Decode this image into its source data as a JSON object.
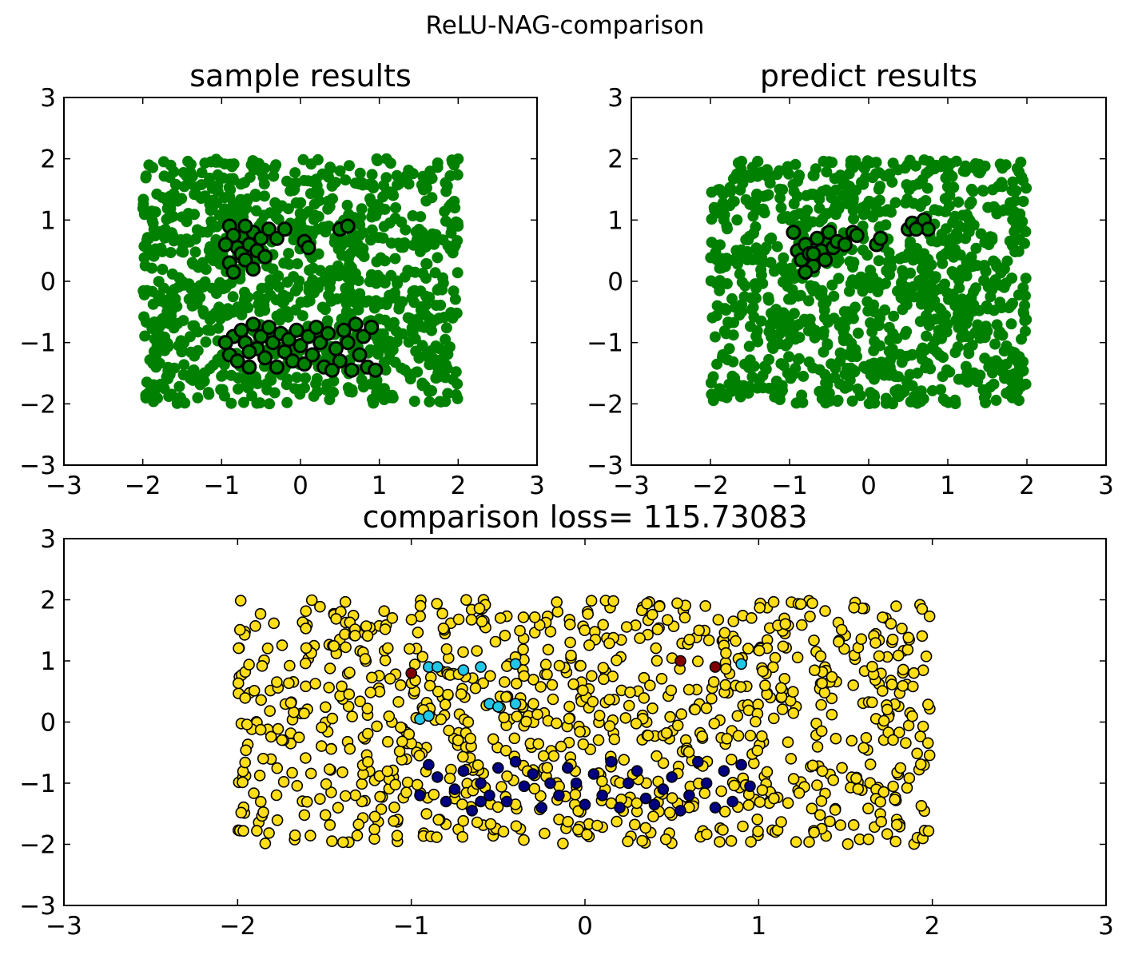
{
  "figure": {
    "suptitle": "ReLU-NAG-comparison"
  },
  "chart_data": [
    {
      "id": "sample",
      "type": "scatter",
      "title": "sample results",
      "xlim": [
        -3,
        3
      ],
      "ylim": [
        -3,
        3
      ],
      "xticks": [
        -3,
        -2,
        -1,
        0,
        1,
        2,
        3
      ],
      "yticks": [
        -3,
        -2,
        -1,
        0,
        1,
        2,
        3
      ],
      "grid": false,
      "background_points": {
        "distribution": "uniform",
        "x_range": [
          -2,
          2
        ],
        "y_range": [
          -2,
          2
        ],
        "approx_count": 1000,
        "color": "#008000"
      },
      "series": [
        {
          "color": "#008000",
          "edge": "#000000",
          "points": [
            [
              -0.9,
              0.9
            ],
            [
              -0.85,
              0.75
            ],
            [
              -0.8,
              0.55
            ],
            [
              -0.75,
              0.45
            ],
            [
              -0.7,
              0.35
            ],
            [
              -0.65,
              0.6
            ],
            [
              -0.6,
              0.8
            ],
            [
              -0.55,
              0.5
            ],
            [
              -0.5,
              0.7
            ],
            [
              -0.45,
              0.4
            ],
            [
              -0.9,
              0.3
            ],
            [
              -0.85,
              0.15
            ],
            [
              -0.7,
              0.9
            ],
            [
              -0.4,
              0.85
            ],
            [
              -0.3,
              0.7
            ],
            [
              -0.2,
              0.85
            ],
            [
              0.05,
              0.65
            ],
            [
              0.1,
              0.55
            ],
            [
              0.5,
              0.85
            ],
            [
              0.6,
              0.9
            ],
            [
              -0.95,
              0.6
            ],
            [
              -0.6,
              0.2
            ],
            [
              -0.9,
              -1.2
            ],
            [
              -0.85,
              -0.9
            ],
            [
              -0.8,
              -1.3
            ],
            [
              -0.75,
              -0.8
            ],
            [
              -0.7,
              -1.0
            ],
            [
              -0.65,
              -1.4
            ],
            [
              -0.6,
              -0.7
            ],
            [
              -0.55,
              -1.1
            ],
            [
              -0.5,
              -0.9
            ],
            [
              -0.45,
              -1.25
            ],
            [
              -0.4,
              -0.75
            ],
            [
              -0.35,
              -1.0
            ],
            [
              -0.3,
              -1.4
            ],
            [
              -0.25,
              -0.85
            ],
            [
              -0.2,
              -1.15
            ],
            [
              -0.15,
              -0.95
            ],
            [
              -0.1,
              -1.3
            ],
            [
              -0.05,
              -0.8
            ],
            [
              0.0,
              -1.05
            ],
            [
              0.05,
              -1.35
            ],
            [
              0.1,
              -0.9
            ],
            [
              0.15,
              -1.2
            ],
            [
              0.2,
              -0.75
            ],
            [
              0.25,
              -1.0
            ],
            [
              0.3,
              -1.4
            ],
            [
              0.35,
              -0.85
            ],
            [
              0.45,
              -1.1
            ],
            [
              0.5,
              -1.3
            ],
            [
              0.55,
              -0.8
            ],
            [
              0.6,
              -1.0
            ],
            [
              0.65,
              -1.45
            ],
            [
              0.7,
              -0.7
            ],
            [
              0.75,
              -1.2
            ],
            [
              0.8,
              -0.9
            ],
            [
              0.85,
              -1.4
            ],
            [
              0.9,
              -0.75
            ],
            [
              -0.95,
              -1.0
            ],
            [
              -0.65,
              -1.15
            ],
            [
              0.4,
              -1.45
            ],
            [
              0.95,
              -1.45
            ]
          ]
        }
      ]
    },
    {
      "id": "predict",
      "type": "scatter",
      "title": "predict results",
      "xlim": [
        -3,
        3
      ],
      "ylim": [
        -3,
        3
      ],
      "xticks": [
        -3,
        -2,
        -1,
        0,
        1,
        2,
        3
      ],
      "yticks": [
        -3,
        -2,
        -1,
        0,
        1,
        2,
        3
      ],
      "grid": false,
      "background_points": {
        "distribution": "uniform",
        "x_range": [
          -2,
          2
        ],
        "y_range": [
          -2,
          2
        ],
        "approx_count": 1000,
        "color": "#008000"
      },
      "series": [
        {
          "color": "#008000",
          "edge": "#000000",
          "points": [
            [
              -0.95,
              0.8
            ],
            [
              -0.9,
              0.5
            ],
            [
              -0.85,
              0.35
            ],
            [
              -0.8,
              0.6
            ],
            [
              -0.75,
              0.45
            ],
            [
              -0.7,
              0.25
            ],
            [
              -0.65,
              0.7
            ],
            [
              -0.6,
              0.5
            ],
            [
              -0.55,
              0.35
            ],
            [
              -0.5,
              0.8
            ],
            [
              -0.45,
              0.55
            ],
            [
              -0.4,
              0.65
            ],
            [
              -0.3,
              0.6
            ],
            [
              -0.2,
              0.8
            ],
            [
              -0.15,
              0.75
            ],
            [
              0.1,
              0.6
            ],
            [
              0.15,
              0.7
            ],
            [
              0.5,
              0.85
            ],
            [
              0.55,
              0.95
            ],
            [
              0.65,
              0.9
            ],
            [
              0.7,
              1.0
            ],
            [
              0.75,
              0.85
            ],
            [
              -0.8,
              0.15
            ],
            [
              -0.7,
              0.45
            ],
            [
              0.6,
              0.85
            ]
          ]
        }
      ]
    },
    {
      "id": "comparison",
      "type": "scatter",
      "title": "comparison loss= 115.73083",
      "xlim": [
        -3,
        3
      ],
      "ylim": [
        -3,
        3
      ],
      "xticks": [
        -3,
        -2,
        -1,
        0,
        1,
        2,
        3
      ],
      "yticks": [
        -3,
        -2,
        -1,
        0,
        1,
        2,
        3
      ],
      "grid": false,
      "background_points": {
        "distribution": "uniform",
        "x_range": [
          -2,
          2
        ],
        "y_range": [
          -2,
          2
        ],
        "approx_count": 1000,
        "color": "#ffde17"
      },
      "series": [
        {
          "color": "#000080",
          "points": [
            [
              -0.9,
              -0.7
            ],
            [
              -0.85,
              -0.9
            ],
            [
              -0.8,
              -1.3
            ],
            [
              -0.75,
              -1.1
            ],
            [
              -0.7,
              -0.8
            ],
            [
              -0.65,
              -1.45
            ],
            [
              -0.6,
              -1.0
            ],
            [
              -0.55,
              -1.2
            ],
            [
              -0.5,
              -0.75
            ],
            [
              -0.45,
              -1.3
            ],
            [
              -0.4,
              -0.65
            ],
            [
              -0.35,
              -1.05
            ],
            [
              -0.3,
              -0.85
            ],
            [
              -0.25,
              -1.4
            ],
            [
              -0.15,
              -1.2
            ],
            [
              -0.1,
              -0.75
            ],
            [
              -0.05,
              -1.0
            ],
            [
              0.0,
              -1.35
            ],
            [
              0.05,
              -0.85
            ],
            [
              0.1,
              -1.2
            ],
            [
              0.15,
              -0.65
            ],
            [
              0.2,
              -1.4
            ],
            [
              0.25,
              -1.0
            ],
            [
              0.3,
              -0.8
            ],
            [
              0.35,
              -1.25
            ],
            [
              0.45,
              -1.1
            ],
            [
              0.5,
              -0.9
            ],
            [
              0.55,
              -1.45
            ],
            [
              0.6,
              -1.2
            ],
            [
              0.65,
              -0.65
            ],
            [
              0.7,
              -1.0
            ],
            [
              0.75,
              -1.4
            ],
            [
              0.8,
              -0.8
            ],
            [
              0.85,
              -1.3
            ],
            [
              0.9,
              -0.7
            ],
            [
              -0.95,
              -1.2
            ],
            [
              -0.6,
              -1.3
            ],
            [
              0.4,
              -1.35
            ],
            [
              0.95,
              -1.05
            ],
            [
              -0.2,
              -1.0
            ]
          ]
        },
        {
          "color": "#22c6e8",
          "points": [
            [
              -0.9,
              0.9
            ],
            [
              -0.85,
              0.9
            ],
            [
              -0.7,
              0.85
            ],
            [
              -0.6,
              0.9
            ],
            [
              -0.4,
              0.95
            ],
            [
              -0.55,
              0.3
            ],
            [
              -0.4,
              0.3
            ],
            [
              -0.95,
              0.05
            ],
            [
              -0.9,
              0.1
            ],
            [
              -0.5,
              0.25
            ],
            [
              0.9,
              0.95
            ]
          ]
        },
        {
          "color": "#800000",
          "points": [
            [
              -1.0,
              0.8
            ],
            [
              0.55,
              1.0
            ],
            [
              0.75,
              0.9
            ]
          ]
        }
      ]
    }
  ]
}
